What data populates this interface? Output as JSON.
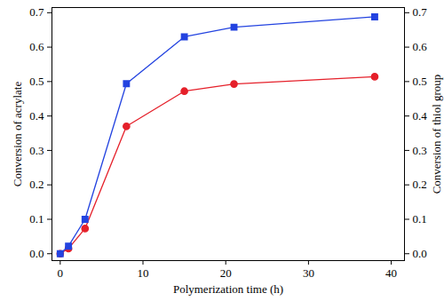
{
  "chart_data": {
    "type": "line",
    "xlabel": "Polymerization time (h)",
    "ylabel": "Conversion of acrylate",
    "y2label": "Conversion of thiol group",
    "x": [
      0,
      1,
      3,
      8,
      15,
      21,
      38
    ],
    "xlim": [
      -1,
      41.6
    ],
    "xticks": [
      0,
      10,
      20,
      30,
      40
    ],
    "ylim": [
      -0.02,
      0.715
    ],
    "yticks": [
      {
        "value": 0,
        "label": "0.0"
      },
      {
        "value": 0.1,
        "label": "0.1"
      },
      {
        "value": 0.2,
        "label": "0.2"
      },
      {
        "value": 0.3,
        "label": "0.3"
      },
      {
        "value": 0.4,
        "label": "0.4"
      },
      {
        "value": 0.5,
        "label": "0.5"
      },
      {
        "value": 0.6,
        "label": "0.6"
      },
      {
        "value": 0.7,
        "label": "0.7"
      }
    ],
    "y2lim": [
      -0.02,
      0.715
    ],
    "y2ticks": [
      {
        "value": 0,
        "label": "0.0"
      },
      {
        "value": 0.1,
        "label": "0.1"
      },
      {
        "value": 0.2,
        "label": "0.2"
      },
      {
        "value": 0.3,
        "label": "0.3"
      },
      {
        "value": 0.4,
        "label": "0.4"
      },
      {
        "value": 0.5,
        "label": "0.5"
      },
      {
        "value": 0.6,
        "label": "0.6"
      },
      {
        "value": 0.7,
        "label": "0.7"
      }
    ],
    "series": [
      {
        "color": "#e5202a",
        "marker": "circle",
        "values": [
          0,
          0.015,
          0.073,
          0.37,
          0.472,
          0.493,
          0.514
        ]
      },
      {
        "color": "#2343e0",
        "marker": "square",
        "axis": "y2",
        "values": [
          0,
          0.022,
          0.1,
          0.494,
          0.63,
          0.658,
          0.688
        ]
      }
    ]
  }
}
